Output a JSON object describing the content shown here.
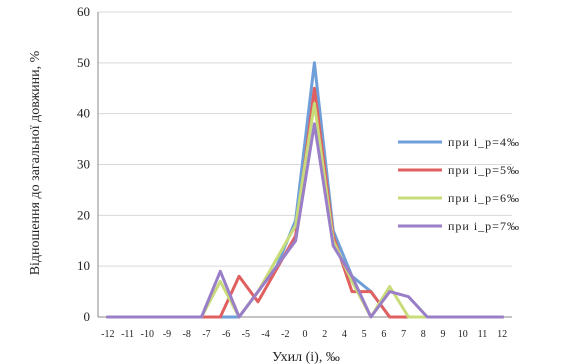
{
  "chart_data": {
    "type": "line",
    "xlabel": "Ухил (i), ‰",
    "ylabel": "Відношення до загальної довжини, %",
    "x": [
      -12,
      -11,
      -10,
      -9,
      -8,
      -7,
      -6,
      -5,
      -4,
      -3,
      -2,
      0,
      2,
      4,
      5,
      6,
      7,
      8,
      9,
      10,
      11,
      12
    ],
    "x_tick_labels": [
      "-12",
      "-11",
      "-10",
      "-9",
      "-8",
      "-7",
      "-6",
      "-5",
      "-4",
      "-2",
      "0",
      "2",
      "4",
      "5",
      "6",
      "7",
      "8",
      "9",
      "10",
      "11",
      "12"
    ],
    "ylim": [
      0,
      60
    ],
    "y_ticks": [
      0,
      10,
      20,
      30,
      40,
      50,
      60
    ],
    "grid": true,
    "legend_position": "right",
    "series": [
      {
        "name": "при і_р=4‰",
        "color": "#6f9fd8",
        "points": [
          [
            -12,
            0
          ],
          [
            -11,
            0
          ],
          [
            -10,
            0
          ],
          [
            -9,
            0
          ],
          [
            -8,
            0
          ],
          [
            -7,
            0
          ],
          [
            -6,
            0
          ],
          [
            -5,
            0
          ],
          [
            -4,
            5
          ],
          [
            -3,
            10
          ],
          [
            -2,
            19
          ],
          [
            0,
            50
          ],
          [
            2,
            17
          ],
          [
            4,
            8
          ],
          [
            5,
            5
          ],
          [
            6,
            0
          ],
          [
            7,
            0
          ],
          [
            8,
            0
          ],
          [
            9,
            0
          ],
          [
            10,
            0
          ],
          [
            11,
            0
          ],
          [
            12,
            0
          ]
        ]
      },
      {
        "name": "при і_р=5‰",
        "color": "#e06060",
        "points": [
          [
            -12,
            0
          ],
          [
            -11,
            0
          ],
          [
            -10,
            0
          ],
          [
            -9,
            0
          ],
          [
            -8,
            0
          ],
          [
            -7,
            0
          ],
          [
            -6,
            0
          ],
          [
            -5,
            8
          ],
          [
            -4,
            3
          ],
          [
            -2,
            16
          ],
          [
            0,
            45
          ],
          [
            2,
            16
          ],
          [
            4,
            5
          ],
          [
            5,
            5
          ],
          [
            6,
            0
          ],
          [
            7,
            0
          ],
          [
            8,
            0
          ],
          [
            9,
            0
          ],
          [
            10,
            0
          ],
          [
            11,
            0
          ],
          [
            12,
            0
          ]
        ]
      },
      {
        "name": "при і_р=6‰",
        "color": "#c8dc7a",
        "points": [
          [
            -12,
            0
          ],
          [
            -11,
            0
          ],
          [
            -10,
            0
          ],
          [
            -9,
            0
          ],
          [
            -8,
            0
          ],
          [
            -7,
            0
          ],
          [
            -6,
            7
          ],
          [
            -5,
            0
          ],
          [
            -4,
            5
          ],
          [
            -2,
            18
          ],
          [
            0,
            42
          ],
          [
            2,
            15
          ],
          [
            4,
            7
          ],
          [
            5,
            0
          ],
          [
            6,
            6
          ],
          [
            7,
            0
          ],
          [
            8,
            0
          ],
          [
            9,
            0
          ],
          [
            10,
            0
          ],
          [
            11,
            0
          ],
          [
            12,
            0
          ]
        ]
      },
      {
        "name": "при і_р=7‰",
        "color": "#9a7fc8",
        "points": [
          [
            -12,
            0
          ],
          [
            -11,
            0
          ],
          [
            -10,
            0
          ],
          [
            -9,
            0
          ],
          [
            -8,
            0
          ],
          [
            -7,
            0
          ],
          [
            -6,
            9
          ],
          [
            -5,
            0
          ],
          [
            -4,
            5
          ],
          [
            -2,
            15
          ],
          [
            0,
            38
          ],
          [
            2,
            14
          ],
          [
            4,
            8
          ],
          [
            5,
            0
          ],
          [
            6,
            5
          ],
          [
            7,
            4
          ],
          [
            8,
            0
          ],
          [
            9,
            0
          ],
          [
            10,
            0
          ],
          [
            11,
            0
          ],
          [
            12,
            0
          ]
        ]
      }
    ]
  }
}
